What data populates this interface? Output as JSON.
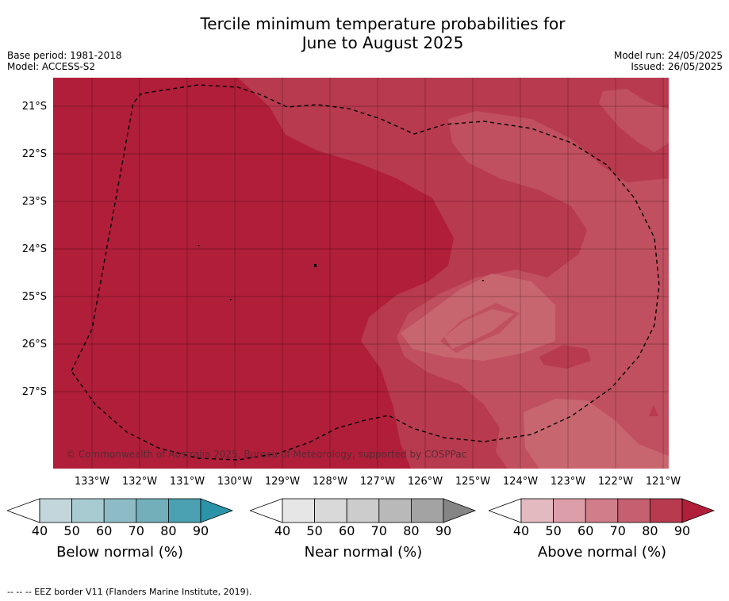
{
  "title_line1": "Tercile minimum temperature probabilities for",
  "title_line2": "June to August 2025",
  "base_period": "Base period: 1981-2018",
  "model": "Model: ACCESS-S2",
  "model_run": "Model run: 24/05/2025",
  "issued": "Issued: 26/05/2025",
  "copyright": "© Commonwealth of Australia 2025, Bureau of Meteorology, supported by COSPPac",
  "latitudes": [
    "21°S",
    "22°S",
    "23°S",
    "24°S",
    "25°S",
    "26°S",
    "27°S"
  ],
  "longitudes": [
    "133°W",
    "132°W",
    "131°W",
    "130°W",
    "129°W",
    "128°W",
    "127°W",
    "126°W",
    "125°W",
    "124°W",
    "123°W",
    "122°W",
    "121°W"
  ],
  "legends": [
    {
      "title": "Below normal (%)",
      "ticks": [
        "40",
        "50",
        "60",
        "70",
        "80",
        "90"
      ],
      "colors": [
        "#c2d6dc",
        "#a8cad1",
        "#8ebcc6",
        "#73afbb",
        "#4ba1b1",
        "#2b93a8"
      ]
    },
    {
      "title": "Near normal (%)",
      "ticks": [
        "40",
        "50",
        "60",
        "70",
        "80",
        "90"
      ],
      "colors": [
        "#e6e6e6",
        "#d9d9d9",
        "#cccccc",
        "#b9b9b9",
        "#a3a3a3",
        "#858585"
      ]
    },
    {
      "title": "Above normal (%)",
      "ticks": [
        "40",
        "50",
        "60",
        "70",
        "80",
        "90"
      ],
      "colors": [
        "#e4bac1",
        "#dc9ea8",
        "#d07e8a",
        "#c4606f",
        "#b83a4f",
        "#b01e3a"
      ]
    }
  ],
  "footnote": "--  --  -- EEZ border V11 (Flanders Marine Institute, 2019).",
  "map_colors": {
    "c90": "#b01e3a",
    "c80": "#b83a4f",
    "c70": "#c0505f",
    "c60": "#c8666f"
  }
}
